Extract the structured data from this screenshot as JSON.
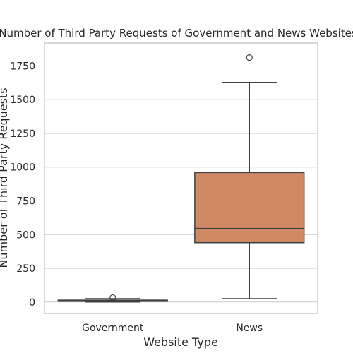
{
  "chart_data": {
    "type": "box",
    "title": "Number of Third Party Requests of Government and News Websites",
    "xlabel": "Website Type",
    "ylabel": "Number of Third Party Requests",
    "ylim": [
      -85,
      1920
    ],
    "yticks": [
      0,
      250,
      500,
      750,
      1000,
      1250,
      1500,
      1750
    ],
    "grid": true,
    "categories": [
      "Government",
      "News"
    ],
    "boxes": [
      {
        "name": "Government",
        "color": "#4c72b0",
        "whisker_low": 0,
        "q1": 5,
        "median": 9,
        "q3": 14,
        "whisker_high": 25,
        "fliers": [
          33
        ]
      },
      {
        "name": "News",
        "color": "#d08a63",
        "whisker_low": 25,
        "q1": 440,
        "median": 545,
        "q3": 960,
        "whisker_high": 1628,
        "fliers": [
          1812
        ]
      }
    ]
  }
}
